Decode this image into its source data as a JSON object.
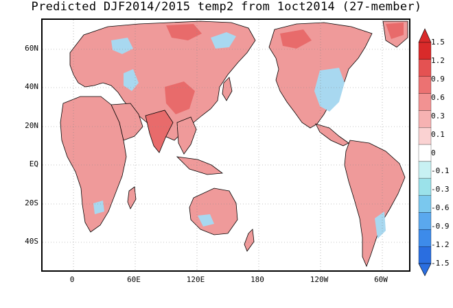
{
  "title": "Predicted DJF2014/2015 temp2 from 1oct2014 (27-member)",
  "y_ticks": [
    "60N",
    "40N",
    "20N",
    "EQ",
    "20S",
    "40S"
  ],
  "x_ticks": [
    "0",
    "60E",
    "120E",
    "180",
    "120W",
    "60W"
  ],
  "colorbar": {
    "labels": [
      "1.5",
      "1.2",
      "0.9",
      "0.6",
      "0.3",
      "0.1",
      "0",
      "-0.1",
      "-0.3",
      "-0.6",
      "-0.9",
      "-1.2",
      "-1.5"
    ],
    "colors": [
      "#d92a2a",
      "#e45252",
      "#ec7272",
      "#f29292",
      "#f6b2b2",
      "#fad2d2",
      "#ffffff",
      "#c8f1f3",
      "#9be2ea",
      "#7ac8ee",
      "#5aa8ee",
      "#3d8bea",
      "#2a6ee0"
    ]
  },
  "anomaly_colors": {
    "warm": "#ef9a9a",
    "warm_strong": "#e86b6b",
    "warm_weak": "#f6c4c4",
    "cool": "#a8d8f0",
    "cool_strong": "#6fb0ea"
  }
}
